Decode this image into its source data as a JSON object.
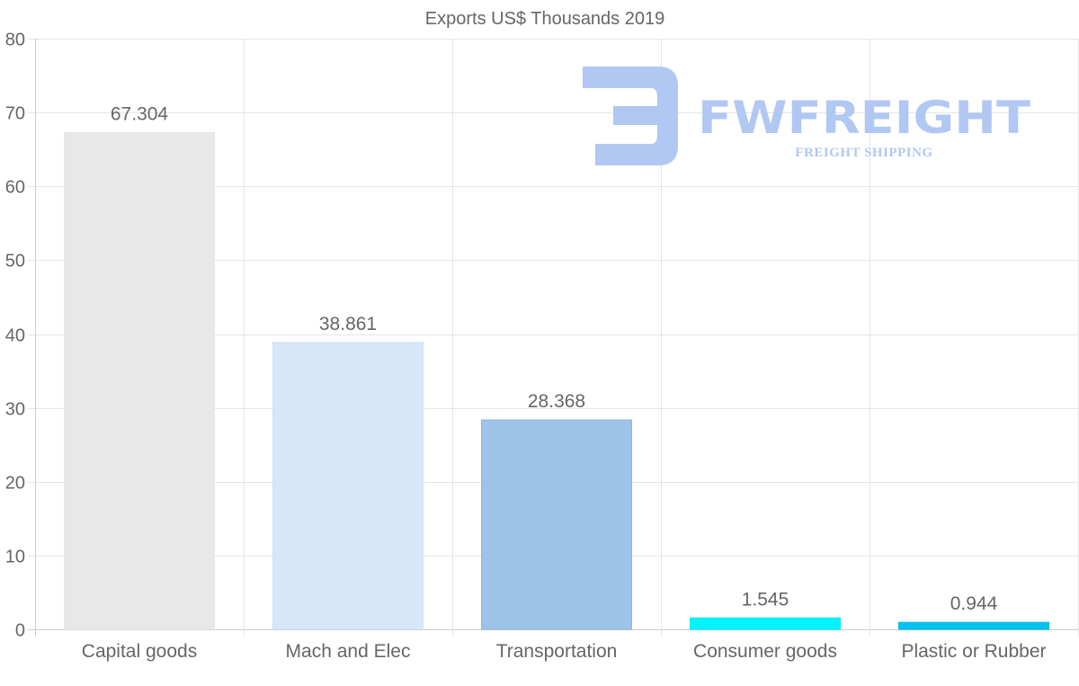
{
  "chart_data": {
    "type": "bar",
    "title": "Exports US$ Thousands 2019",
    "categories": [
      "Capital goods",
      "Mach and Elec",
      "Transportation",
      "Consumer goods",
      "Plastic or Rubber"
    ],
    "values": [
      67.304,
      38.861,
      28.368,
      1.545,
      0.944
    ],
    "value_labels": [
      "67.304",
      "38.861",
      "28.368",
      "1.545",
      "0.944"
    ],
    "colors": [
      "#e8e8e8",
      "#d6e7f9",
      "#9dc3e8",
      "#00f5ff",
      "#00c3ee"
    ],
    "border_colors": [
      "#e8e8e8",
      "#cfe0f5",
      "#8fb8e0",
      "#00e8f5",
      "#00b5e5"
    ],
    "ylim": [
      0,
      80
    ],
    "yticks": [
      0,
      10,
      20,
      30,
      40,
      50,
      60,
      70,
      80
    ],
    "xlabel": "",
    "ylabel": "",
    "grid": true,
    "legend": "none"
  },
  "watermark": {
    "brand": "FWFREIGHT",
    "tagline": "FREIGHT SHIPPING",
    "color": "#b0c8f2"
  }
}
